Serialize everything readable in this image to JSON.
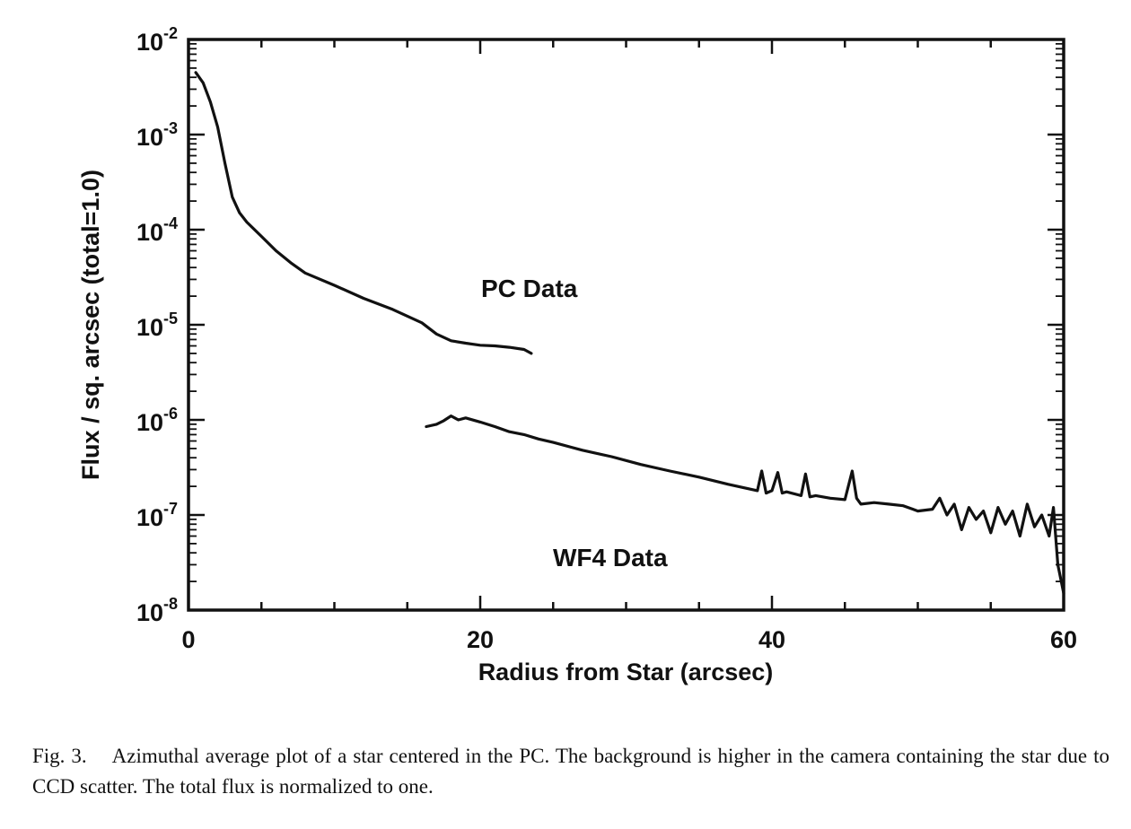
{
  "chart_data": {
    "type": "line",
    "xlabel": "Radius from Star (arcsec)",
    "ylabel": "Flux / sq. arcsec (total=1.0)",
    "xlim": [
      0,
      60
    ],
    "ylim": [
      1e-08,
      0.01
    ],
    "yscale": "log",
    "grid": false,
    "xticks": [
      0,
      20,
      40,
      60
    ],
    "xtick_labels": [
      "0",
      "20",
      "40",
      "60"
    ],
    "yticks": [
      -8,
      -7,
      -6,
      -5,
      -4,
      -3,
      -2
    ],
    "ytick_labels": [
      {
        "base": "10",
        "exp": "-8"
      },
      {
        "base": "10",
        "exp": "-7"
      },
      {
        "base": "10",
        "exp": "-6"
      },
      {
        "base": "10",
        "exp": "-5"
      },
      {
        "base": "10",
        "exp": "-4"
      },
      {
        "base": "10",
        "exp": "-3"
      },
      {
        "base": "10",
        "exp": "-2"
      }
    ],
    "annotations": [
      {
        "text": "PC Data"
      },
      {
        "text": "WF4 Data"
      }
    ],
    "series": [
      {
        "x": [
          0.5,
          1,
          1.5,
          2,
          2.5,
          3,
          3.5,
          4,
          5,
          6,
          7,
          8,
          10,
          12,
          14,
          16,
          17,
          18,
          19,
          20,
          21,
          22,
          23,
          23.5
        ],
        "y": [
          0.0045,
          0.0035,
          0.0022,
          0.0012,
          0.0005,
          0.00022,
          0.00015,
          0.00012,
          8.5e-05,
          6e-05,
          4.5e-05,
          3.5e-05,
          2.6e-05,
          1.9e-05,
          1.45e-05,
          1.05e-05,
          8e-06,
          6.8e-06,
          6.4e-06,
          6.1e-06,
          6e-06,
          5.8e-06,
          5.5e-06,
          5e-06
        ]
      },
      {
        "x": [
          16.3,
          17,
          17.5,
          18,
          18.5,
          19,
          20,
          21,
          22,
          23,
          24,
          25,
          27,
          29,
          31,
          33,
          35,
          37,
          39,
          39.3,
          39.6,
          40,
          40.4,
          40.7,
          41,
          42,
          42.3,
          42.6,
          43,
          44,
          45,
          45.5,
          45.8,
          46.1,
          47,
          48,
          49,
          50,
          51,
          51.5,
          52,
          52.5,
          53,
          53.5,
          54,
          54.5,
          55,
          55.5,
          56,
          56.5,
          57,
          57.5,
          58,
          58.5,
          59,
          59.3,
          59.6,
          60
        ],
        "y": [
          8.5e-07,
          9e-07,
          9.8e-07,
          1.1e-06,
          1e-06,
          1.05e-06,
          9.5e-07,
          8.5e-07,
          7.5e-07,
          7e-07,
          6.3e-07,
          5.8e-07,
          4.8e-07,
          4.1e-07,
          3.4e-07,
          2.9e-07,
          2.5e-07,
          2.1e-07,
          1.8e-07,
          2.9e-07,
          1.7e-07,
          1.8e-07,
          2.8e-07,
          1.7e-07,
          1.75e-07,
          1.6e-07,
          2.7e-07,
          1.55e-07,
          1.6e-07,
          1.5e-07,
          1.45e-07,
          2.9e-07,
          1.5e-07,
          1.3e-07,
          1.35e-07,
          1.3e-07,
          1.25e-07,
          1.1e-07,
          1.15e-07,
          1.5e-07,
          1e-07,
          1.3e-07,
          7e-08,
          1.2e-07,
          9e-08,
          1.1e-07,
          6.5e-08,
          1.2e-07,
          8e-08,
          1.1e-07,
          6e-08,
          1.3e-07,
          7.5e-08,
          1e-07,
          6e-08,
          1.2e-07,
          3e-08,
          1.5e-08
        ]
      }
    ]
  },
  "caption": {
    "label": "Fig. 3.",
    "text": "Azimuthal average plot of a star centered in the PC. The background is higher in the camera containing the star due to CCD scatter. The total flux is normalized to one."
  }
}
